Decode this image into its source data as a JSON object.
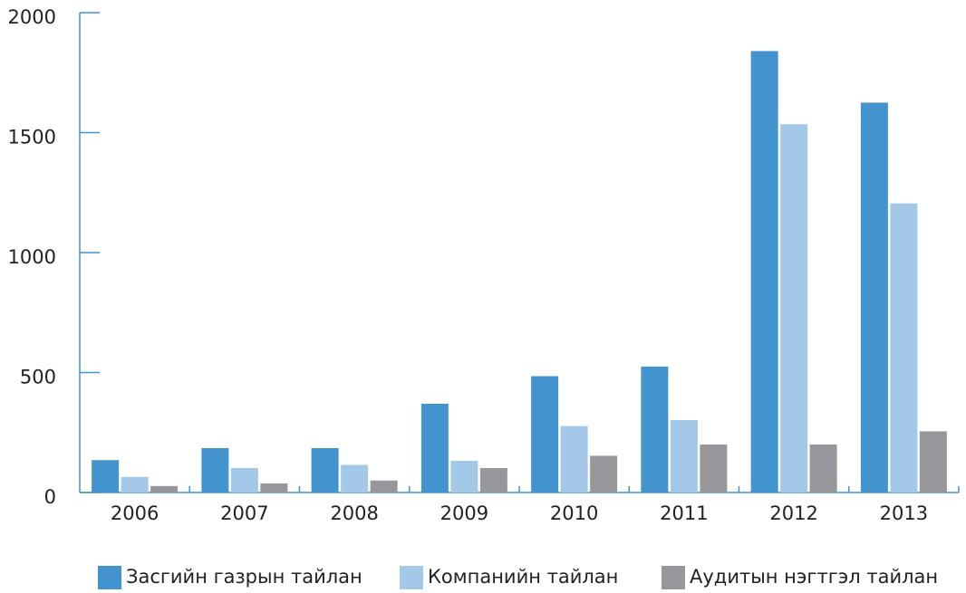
{
  "chart_data": {
    "type": "bar",
    "categories": [
      "2006",
      "2007",
      "2008",
      "2009",
      "2010",
      "2011",
      "2012",
      "2013"
    ],
    "series": [
      {
        "name": "Засгийн газрын тайлан",
        "color": "#4393cf",
        "values": [
          135,
          185,
          185,
          370,
          485,
          525,
          1840,
          1625
        ]
      },
      {
        "name": "Компанийн тайлан",
        "color": "#a3c8e8",
        "values": [
          65,
          102,
          115,
          132,
          277,
          302,
          1535,
          1205
        ]
      },
      {
        "name": "Аудитын нэгтгэл тайлан",
        "color": "#97979b",
        "values": [
          27,
          38,
          50,
          102,
          153,
          200,
          200,
          255
        ]
      }
    ],
    "yticks": [
      "0",
      "500",
      "1000",
      "1500",
      "2000"
    ],
    "ylim": [
      0,
      2000
    ],
    "grid": false,
    "legend_position": "bottom",
    "axis_color": "#4393cf"
  }
}
